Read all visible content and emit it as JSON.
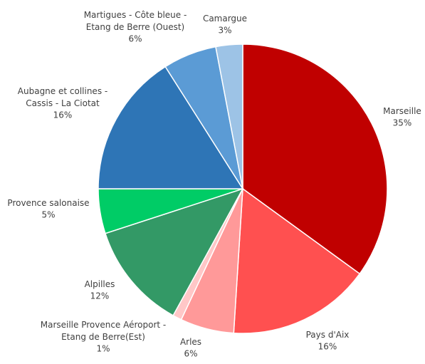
{
  "chart_data": {
    "type": "pie",
    "categories": [
      "Marseille",
      "Pays d'Aix",
      "Arles",
      "Marseille Provence Aéroport -\nEtang de Berre(Est)",
      "Alpilles",
      "Provence salonaise",
      "Aubagne et collines -\nCassis - La Ciotat",
      "Martigues - Côte bleue -\nEtang de Berre (Ouest)",
      "Camargue"
    ],
    "values": [
      35,
      16,
      6,
      1,
      12,
      5,
      16,
      6,
      3
    ],
    "value_labels": [
      "35%",
      "16%",
      "6%",
      "1%",
      "12%",
      "5%",
      "16%",
      "6%",
      "3%"
    ],
    "colors": [
      "#c00000",
      "#ff5050",
      "#ff9999",
      "#ffc7c7",
      "#339966",
      "#00cc66",
      "#2e75b6",
      "#5b9bd5",
      "#9dc3e6"
    ]
  }
}
